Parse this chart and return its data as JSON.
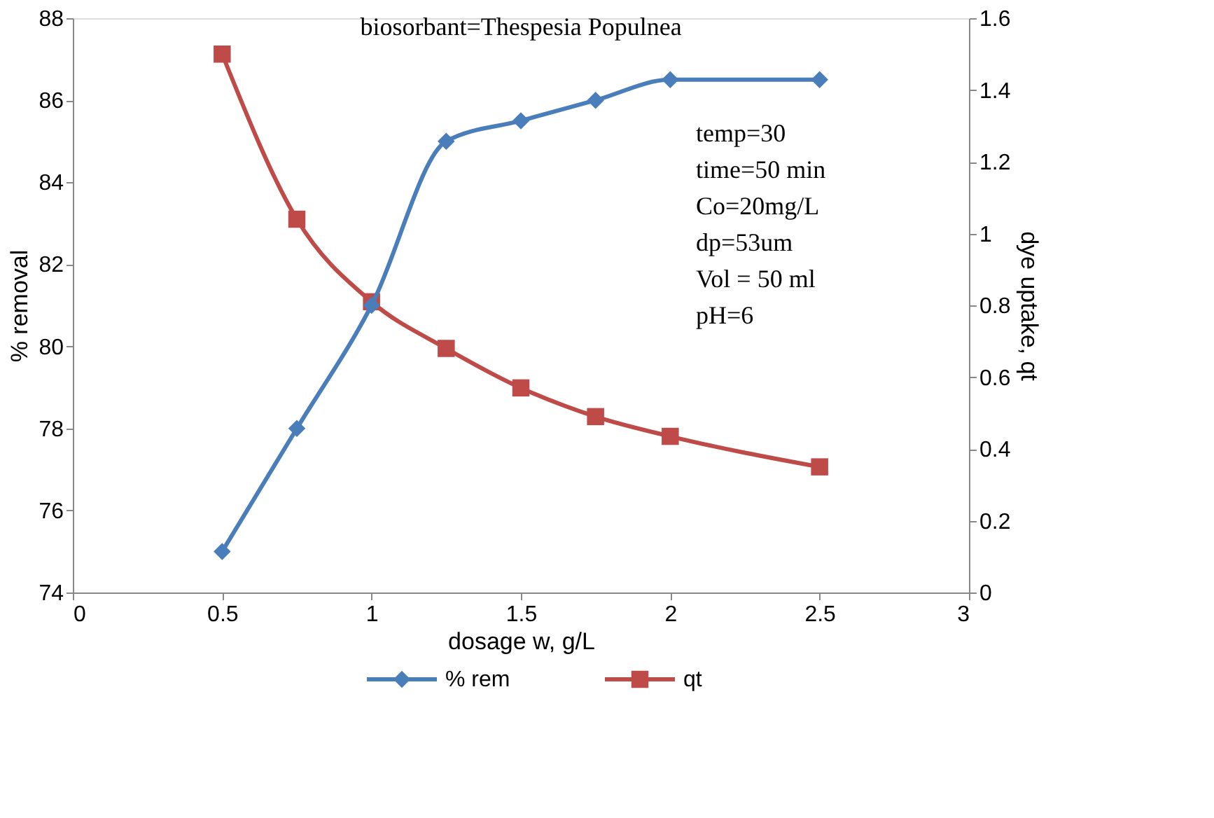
{
  "chart_data": {
    "type": "line",
    "title": "biosorbant=Thespesia Populnea",
    "xlabel": "dosage w, g/L",
    "ylabel": "% removal",
    "y2label": "dye uptake, qt",
    "x": [
      0.5,
      0.75,
      1,
      1.25,
      1.5,
      1.75,
      2,
      2.5
    ],
    "series": [
      {
        "name": "% rem",
        "color": "#4a7ebb",
        "marker": "diamond",
        "values": [
          75,
          78,
          81,
          85,
          85.5,
          86,
          86.5,
          86.5
        ]
      },
      {
        "name": "qt",
        "color": "#be4b48",
        "marker": "square",
        "axis": "y2",
        "values": [
          1.5,
          1.04,
          0.81,
          0.68,
          0.57,
          0.49,
          0.435,
          0.35
        ]
      }
    ],
    "xlim": [
      0,
      3
    ],
    "xticks": [
      0,
      0.5,
      1,
      1.5,
      2,
      2.5,
      3
    ],
    "ylim": [
      74,
      88
    ],
    "yticks": [
      74,
      76,
      78,
      80,
      82,
      84,
      86,
      88
    ],
    "y2lim": [
      0,
      1.6
    ],
    "y2ticks": [
      0,
      0.2,
      0.4,
      0.6,
      0.8,
      1,
      1.2,
      1.4,
      1.6
    ],
    "annotations": [
      "temp=30",
      "time=50 min",
      "Co=20mg/L",
      "dp=53um",
      "Vol = 50 ml",
      "pH=6"
    ],
    "legend": "bottom",
    "grid": false
  }
}
